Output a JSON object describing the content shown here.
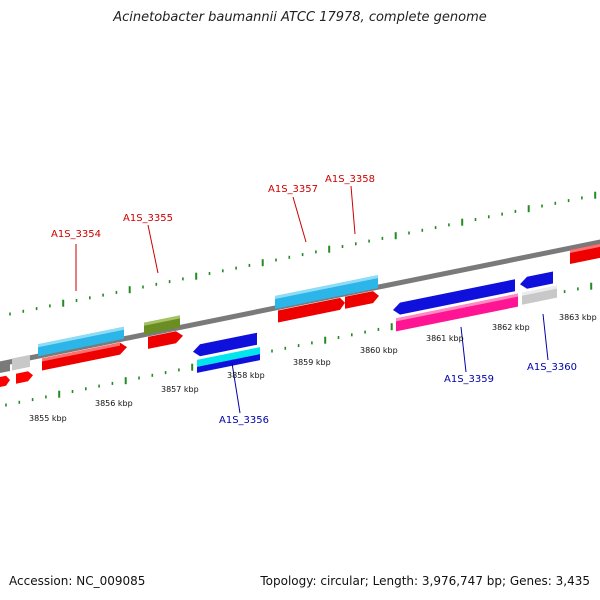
{
  "title": "Acinetobacter baumannii ATCC 17978, complete genome",
  "footer": {
    "accession": "Accession: NC_009085",
    "summary": "Topology: circular; Length: 3,976,747 bp; Genes: 3,435"
  },
  "colors": {
    "backbone": "#808080",
    "tick": "#228b22",
    "label_forward": "#cc0000",
    "label_reverse": "#0000aa",
    "scale_text": "#111111"
  },
  "scale_labels": [
    "3855 kbp",
    "3856 kbp",
    "3857 kbp",
    "3858 kbp",
    "3859 kbp",
    "3860 kbp",
    "3861 kbp",
    "3862 kbp",
    "3863 kbp"
  ],
  "gene_labels_forward": [
    "A1S_3354",
    "A1S_3355",
    "A1S_3357",
    "A1S_3358"
  ],
  "gene_labels_reverse": [
    "A1S_3356",
    "A1S_3359",
    "A1S_3360"
  ]
}
